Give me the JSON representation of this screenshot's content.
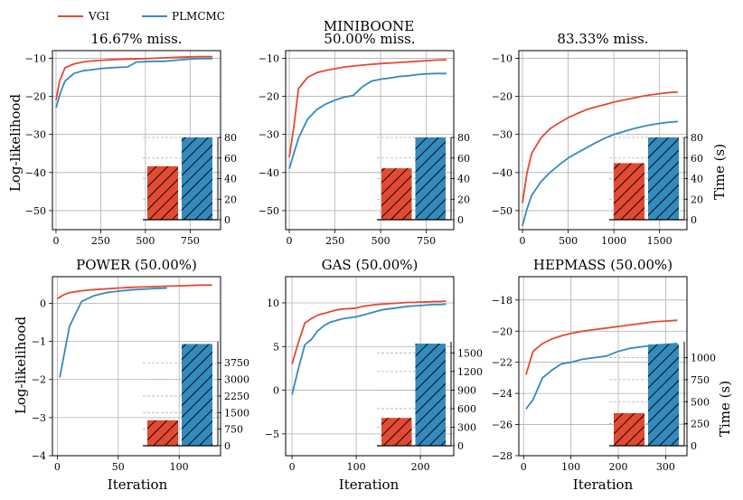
{
  "legend": [
    {
      "name": "VGI",
      "color": "#e24a33"
    },
    {
      "name": "PLMCMC",
      "color": "#348abd"
    }
  ],
  "super_title": "MINIBOONE",
  "y_label": "Log-likelihood",
  "x_label": "Iteration",
  "time_label": "Time (s)",
  "colors": {
    "vgi": "#e24a33",
    "plmcmc": "#348abd",
    "grid": "#b0b0b0"
  },
  "chart_data": [
    {
      "type": "line",
      "title": "16.67% miss.",
      "xlim": [
        -20,
        920
      ],
      "ylim": [
        -55,
        -8
      ],
      "xticks": [
        0,
        250,
        500,
        750
      ],
      "yticks": [
        -10,
        -20,
        -30,
        -40,
        -50
      ],
      "series": [
        {
          "name": "VGI",
          "x": [
            0,
            20,
            50,
            100,
            150,
            200,
            300,
            400,
            500,
            600,
            700,
            800,
            875
          ],
          "y": [
            -21,
            -16,
            -12.5,
            -11.5,
            -11,
            -10.7,
            -10.4,
            -10.2,
            -10.1,
            -9.9,
            -9.7,
            -9.6,
            -9.6
          ]
        },
        {
          "name": "PLMCMC",
          "x": [
            0,
            25,
            50,
            100,
            150,
            200,
            250,
            300,
            350,
            400,
            450,
            500,
            550,
            600,
            650,
            700,
            750,
            800,
            875
          ],
          "y": [
            -23,
            -19,
            -16,
            -14,
            -13.3,
            -13,
            -12.7,
            -12.5,
            -12.4,
            -12.3,
            -11,
            -10.9,
            -10.8,
            -10.8,
            -10.6,
            -10.4,
            -10.2,
            -10.1,
            -10.1
          ]
        }
      ],
      "bars": {
        "ylim": [
          0,
          80
        ],
        "yticks": [
          0,
          20,
          40,
          60,
          80
        ],
        "vgi": 52,
        "plmcmc": 80
      }
    },
    {
      "type": "line",
      "title": "50.00% miss.",
      "xlim": [
        -20,
        900
      ],
      "ylim": [
        -55,
        -8
      ],
      "xticks": [
        0,
        250,
        500,
        750
      ],
      "yticks": [
        -10,
        -20,
        -30,
        -40,
        -50
      ],
      "series": [
        {
          "name": "VGI",
          "x": [
            0,
            25,
            50,
            100,
            150,
            200,
            300,
            400,
            500,
            600,
            700,
            800,
            860
          ],
          "y": [
            -36,
            -28,
            -18,
            -15,
            -13.8,
            -13.2,
            -12.3,
            -11.8,
            -11.4,
            -11.1,
            -10.8,
            -10.5,
            -10.4
          ]
        },
        {
          "name": "PLMCMC",
          "x": [
            0,
            25,
            50,
            100,
            150,
            200,
            250,
            300,
            350,
            400,
            450,
            500,
            550,
            600,
            650,
            700,
            750,
            800,
            860
          ],
          "y": [
            -39,
            -35,
            -31,
            -26,
            -23.5,
            -22,
            -21,
            -20.2,
            -19.8,
            -17.5,
            -16,
            -15.5,
            -15.2,
            -14.8,
            -14.6,
            -14.3,
            -14.1,
            -14,
            -14
          ]
        }
      ],
      "bars": {
        "ylim": [
          0,
          80
        ],
        "yticks": [
          0,
          20,
          40,
          60,
          80
        ],
        "vgi": 50,
        "plmcmc": 80
      }
    },
    {
      "type": "line",
      "title": "83.33% miss.",
      "xlim": [
        -40,
        1800
      ],
      "ylim": [
        -55,
        -8
      ],
      "xticks": [
        0,
        500,
        1000,
        1500
      ],
      "yticks": [
        -10,
        -20,
        -30,
        -40,
        -50
      ],
      "series": [
        {
          "name": "VGI",
          "x": [
            0,
            50,
            100,
            200,
            300,
            400,
            500,
            600,
            700,
            800,
            900,
            1000,
            1100,
            1200,
            1300,
            1400,
            1500,
            1600,
            1700
          ],
          "y": [
            -48,
            -40,
            -35,
            -31,
            -28.5,
            -27,
            -25.6,
            -24.5,
            -23.5,
            -22.8,
            -22.2,
            -21.5,
            -21,
            -20.5,
            -20,
            -19.6,
            -19.3,
            -19,
            -18.9
          ]
        },
        {
          "name": "PLMCMC",
          "x": [
            0,
            50,
            100,
            200,
            300,
            400,
            500,
            600,
            700,
            800,
            900,
            1000,
            1100,
            1200,
            1300,
            1400,
            1500,
            1600,
            1700
          ],
          "y": [
            -54,
            -49.5,
            -46,
            -42.5,
            -40,
            -38,
            -36.2,
            -34.8,
            -33.5,
            -32.2,
            -31,
            -30,
            -29.3,
            -28.6,
            -28,
            -27.5,
            -27.1,
            -26.8,
            -26.6
          ]
        }
      ],
      "bars": {
        "ylim": [
          0,
          80
        ],
        "yticks": [
          0,
          20,
          40,
          60,
          80
        ],
        "vgi": 55,
        "plmcmc": 80
      }
    },
    {
      "type": "line",
      "title": "POWER (50.00%)",
      "xlim": [
        -4,
        134
      ],
      "ylim": [
        -4,
        0.7
      ],
      "xticks": [
        0,
        50,
        100
      ],
      "yticks": [
        0,
        -1,
        -2,
        -3,
        -4
      ],
      "series": [
        {
          "name": "VGI",
          "x": [
            0,
            5,
            10,
            20,
            30,
            40,
            50,
            60,
            70,
            80,
            90,
            100,
            110,
            120,
            127
          ],
          "y": [
            0.12,
            0.22,
            0.28,
            0.33,
            0.36,
            0.38,
            0.4,
            0.42,
            0.43,
            0.44,
            0.45,
            0.46,
            0.47,
            0.48,
            0.48
          ]
        },
        {
          "name": "PLMCMC",
          "x": [
            2,
            10,
            20,
            30,
            40,
            50,
            60,
            70,
            80,
            90
          ],
          "y": [
            -1.95,
            -0.6,
            0.05,
            0.2,
            0.28,
            0.32,
            0.35,
            0.37,
            0.39,
            0.4
          ]
        }
      ],
      "bars": {
        "ylim": [
          0,
          4700
        ],
        "yticks": [
          0,
          750,
          1500,
          2250,
          3000,
          3750
        ],
        "vgi": 1150,
        "plmcmc": 4600
      }
    },
    {
      "type": "line",
      "title": "GAS (50.00%)",
      "xlim": [
        -10,
        252
      ],
      "ylim": [
        -7.5,
        13
      ],
      "xticks": [
        0,
        100,
        200
      ],
      "yticks": [
        10,
        5,
        0,
        -5
      ],
      "series": [
        {
          "name": "VGI",
          "x": [
            0,
            10,
            20,
            30,
            40,
            50,
            60,
            70,
            80,
            90,
            100,
            110,
            120,
            130,
            140,
            150,
            160,
            170,
            180,
            190,
            200,
            210,
            220,
            230,
            240
          ],
          "y": [
            3,
            5.5,
            7.7,
            8.2,
            8.6,
            8.8,
            9.0,
            9.2,
            9.3,
            9.35,
            9.4,
            9.6,
            9.7,
            9.8,
            9.85,
            9.9,
            9.95,
            10.0,
            10.05,
            10.05,
            10.1,
            10.1,
            10.15,
            10.15,
            10.2
          ]
        },
        {
          "name": "PLMCMC",
          "x": [
            0,
            10,
            20,
            30,
            40,
            50,
            60,
            70,
            80,
            90,
            100,
            110,
            120,
            130,
            140,
            150,
            160,
            170,
            180,
            190,
            200,
            210,
            220,
            230,
            240
          ],
          "y": [
            -0.5,
            2.5,
            5.2,
            5.8,
            6.8,
            7.4,
            7.8,
            8.0,
            8.2,
            8.3,
            8.4,
            8.6,
            8.8,
            9.0,
            9.2,
            9.3,
            9.4,
            9.5,
            9.6,
            9.65,
            9.7,
            9.75,
            9.8,
            9.8,
            9.85
          ]
        }
      ],
      "bars": {
        "ylim": [
          0,
          1680
        ],
        "yticks": [
          0,
          300,
          600,
          900,
          1200,
          1500
        ],
        "vgi": 450,
        "plmcmc": 1650
      }
    },
    {
      "type": "line",
      "title": "HEPMASS (50.00%)",
      "xlim": [
        -10,
        345
      ],
      "ylim": [
        -28,
        -16.5
      ],
      "xticks": [
        0,
        100,
        200,
        300
      ],
      "yticks": [
        -18,
        -20,
        -22,
        -24,
        -26,
        -28
      ],
      "series": [
        {
          "name": "VGI",
          "x": [
            5,
            20,
            40,
            60,
            80,
            100,
            125,
            150,
            175,
            200,
            225,
            250,
            275,
            300,
            325
          ],
          "y": [
            -22.8,
            -21.3,
            -20.8,
            -20.5,
            -20.3,
            -20.15,
            -20.0,
            -19.9,
            -19.8,
            -19.7,
            -19.6,
            -19.5,
            -19.4,
            -19.35,
            -19.3
          ]
        },
        {
          "name": "PLMCMC",
          "x": [
            5,
            20,
            40,
            60,
            80,
            100,
            125,
            150,
            175,
            200,
            225,
            250,
            275,
            300,
            325
          ],
          "y": [
            -25,
            -24.4,
            -23.0,
            -22.5,
            -22.1,
            -22.0,
            -21.8,
            -21.7,
            -21.6,
            -21.3,
            -21.1,
            -21.0,
            -20.9,
            -20.85,
            -20.8
          ]
        }
      ],
      "bars": {
        "ylim": [
          0,
          1180
        ],
        "yticks": [
          0,
          250,
          500,
          750,
          1000
        ],
        "vgi": 370,
        "plmcmc": 1150
      }
    }
  ]
}
